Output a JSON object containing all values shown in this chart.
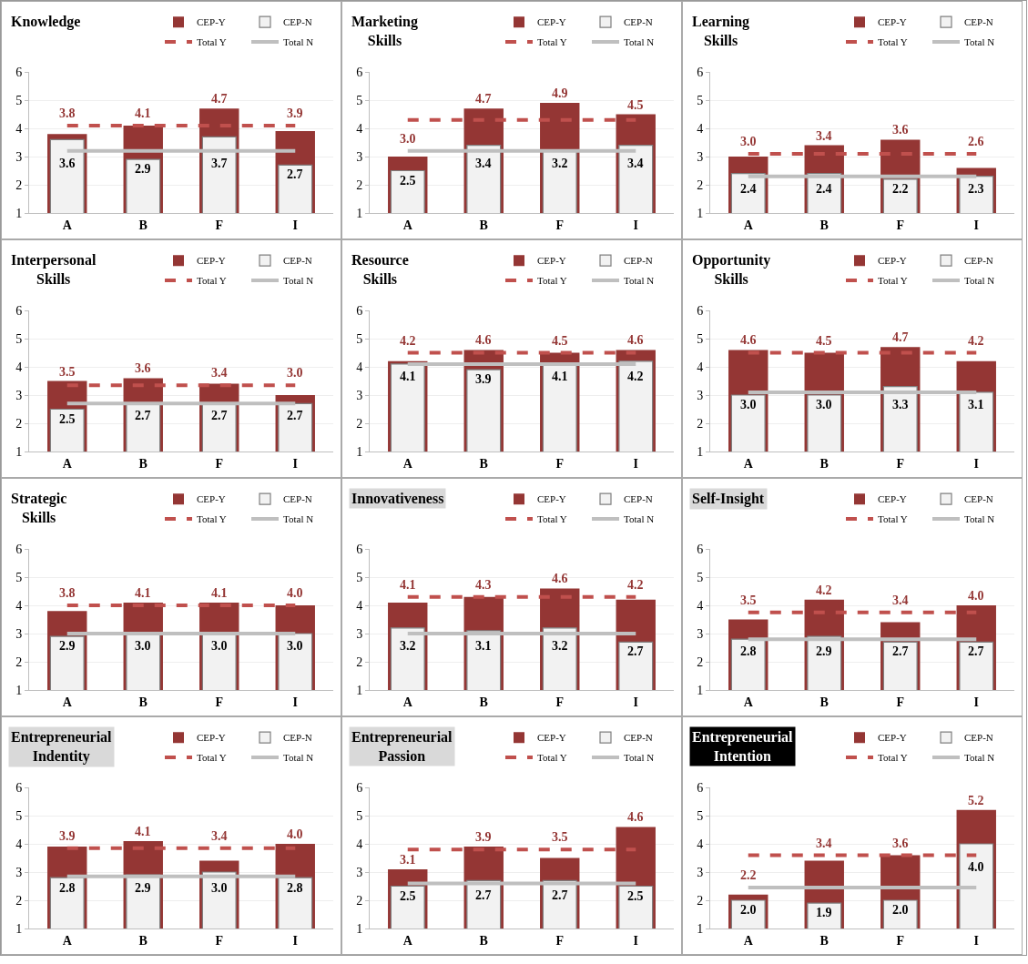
{
  "chart_data": [
    {
      "type": "bar",
      "title": "Knowledge",
      "categories": [
        "A",
        "B",
        "F",
        "I"
      ],
      "ylim": [
        1,
        6
      ],
      "yticks": [
        1,
        2,
        3,
        4,
        5,
        6
      ],
      "grid": "y",
      "legend": "top right",
      "series": [
        {
          "name": "CEP-Y",
          "color": "#943634",
          "values": [
            3.8,
            4.1,
            4.7,
            3.9
          ],
          "value_labels": [
            "3.8",
            "4.1",
            "4.7",
            "3.9"
          ]
        },
        {
          "name": "CEP-N",
          "color": "#f2f2f2",
          "values": [
            3.6,
            2.9,
            3.7,
            2.7
          ],
          "value_labels": [
            "3.6",
            "2.9",
            "3.7",
            "2.7"
          ]
        },
        {
          "name": "Total Y",
          "type": "line",
          "color": "#c0504d",
          "line_style": "dashed",
          "values": [
            4.1,
            4.1,
            4.1,
            4.1
          ]
        },
        {
          "name": "Total N",
          "type": "line",
          "color": "#bfbfbf",
          "line_style": "solid",
          "values": [
            3.2,
            3.2,
            3.2,
            3.2
          ]
        }
      ]
    },
    {
      "type": "bar",
      "title": "Marketing Skills",
      "categories": [
        "A",
        "B",
        "F",
        "I"
      ],
      "ylim": [
        1,
        6
      ],
      "yticks": [
        1,
        2,
        3,
        4,
        5,
        6
      ],
      "grid": "y",
      "legend": "top right",
      "series": [
        {
          "name": "CEP-Y",
          "color": "#943634",
          "values": [
            3.0,
            4.7,
            4.9,
            4.5
          ],
          "value_labels": [
            "3.0",
            "4.7",
            "4.9",
            "4.5"
          ]
        },
        {
          "name": "CEP-N",
          "color": "#f2f2f2",
          "values": [
            2.5,
            3.4,
            3.2,
            3.4
          ],
          "value_labels": [
            "2.5",
            "3.4",
            "3.2",
            "3.4"
          ]
        },
        {
          "name": "Total Y",
          "type": "line",
          "color": "#c0504d",
          "line_style": "dashed",
          "values": [
            4.3,
            4.3,
            4.3,
            4.3
          ]
        },
        {
          "name": "Total N",
          "type": "line",
          "color": "#bfbfbf",
          "line_style": "solid",
          "values": [
            3.2,
            3.2,
            3.2,
            3.2
          ]
        }
      ]
    },
    {
      "type": "bar",
      "title": "Learning Skills",
      "categories": [
        "A",
        "B",
        "F",
        "I"
      ],
      "ylim": [
        1,
        6
      ],
      "yticks": [
        1,
        2,
        3,
        4,
        5,
        6
      ],
      "grid": "y",
      "legend": "top right",
      "series": [
        {
          "name": "CEP-Y",
          "color": "#943634",
          "values": [
            3.0,
            3.4,
            3.6,
            2.6
          ],
          "value_labels": [
            "3.0",
            "3.4",
            "3.6",
            "2.6"
          ]
        },
        {
          "name": "CEP-N",
          "color": "#f2f2f2",
          "values": [
            2.4,
            2.4,
            2.2,
            2.3
          ],
          "value_labels": [
            "2.4",
            "2.4",
            "2.2",
            "2.3"
          ]
        },
        {
          "name": "Total Y",
          "type": "line",
          "color": "#c0504d",
          "line_style": "dashed",
          "values": [
            3.1,
            3.1,
            3.1,
            3.1
          ]
        },
        {
          "name": "Total N",
          "type": "line",
          "color": "#bfbfbf",
          "line_style": "solid",
          "values": [
            2.3,
            2.3,
            2.3,
            2.3
          ]
        }
      ]
    },
    {
      "type": "bar",
      "title": "Interpersonal Skills",
      "categories": [
        "A",
        "B",
        "F",
        "I"
      ],
      "ylim": [
        1,
        6
      ],
      "yticks": [
        1,
        2,
        3,
        4,
        5,
        6
      ],
      "grid": "y",
      "legend": "top right",
      "series": [
        {
          "name": "CEP-Y",
          "color": "#943634",
          "values": [
            3.5,
            3.6,
            3.4,
            3.0
          ],
          "value_labels": [
            "3.5",
            "3.6",
            "3.4",
            "3.0"
          ]
        },
        {
          "name": "CEP-N",
          "color": "#f2f2f2",
          "values": [
            2.5,
            2.7,
            2.7,
            2.7
          ],
          "value_labels": [
            "2.5",
            "2.7",
            "2.7",
            "2.7"
          ]
        },
        {
          "name": "Total Y",
          "type": "line",
          "color": "#c0504d",
          "line_style": "dashed",
          "values": [
            3.35,
            3.35,
            3.35,
            3.35
          ]
        },
        {
          "name": "Total N",
          "type": "line",
          "color": "#bfbfbf",
          "line_style": "solid",
          "values": [
            2.7,
            2.7,
            2.7,
            2.7
          ]
        }
      ]
    },
    {
      "type": "bar",
      "title": "Resource Skills",
      "categories": [
        "A",
        "B",
        "F",
        "I"
      ],
      "ylim": [
        1,
        6
      ],
      "yticks": [
        1,
        2,
        3,
        4,
        5,
        6
      ],
      "grid": "y",
      "legend": "top right",
      "series": [
        {
          "name": "CEP-Y",
          "color": "#943634",
          "values": [
            4.2,
            4.6,
            4.5,
            4.6
          ],
          "value_labels": [
            "4.2",
            "4.6",
            "4.5",
            "4.6"
          ]
        },
        {
          "name": "CEP-N",
          "color": "#f2f2f2",
          "values": [
            4.1,
            3.9,
            4.1,
            4.2
          ],
          "value_labels": [
            "4.1",
            "3.9",
            "4.1",
            "4.2"
          ]
        },
        {
          "name": "Total Y",
          "type": "line",
          "color": "#c0504d",
          "line_style": "dashed",
          "values": [
            4.5,
            4.5,
            4.5,
            4.5
          ]
        },
        {
          "name": "Total N",
          "type": "line",
          "color": "#bfbfbf",
          "line_style": "solid",
          "values": [
            4.1,
            4.1,
            4.1,
            4.1
          ]
        }
      ]
    },
    {
      "type": "bar",
      "title": "Opportunity Skills",
      "categories": [
        "A",
        "B",
        "F",
        "I"
      ],
      "ylim": [
        1,
        6
      ],
      "yticks": [
        1,
        2,
        3,
        4,
        5,
        6
      ],
      "grid": "y",
      "legend": "top right",
      "series": [
        {
          "name": "CEP-Y",
          "color": "#943634",
          "values": [
            4.6,
            4.5,
            4.7,
            4.2
          ],
          "value_labels": [
            "4.6",
            "4.5",
            "4.7",
            "4.2"
          ]
        },
        {
          "name": "CEP-N",
          "color": "#f2f2f2",
          "values": [
            3.0,
            3.0,
            3.3,
            3.1
          ],
          "value_labels": [
            "3.0",
            "3.0",
            "3.3",
            "3.1"
          ]
        },
        {
          "name": "Total Y",
          "type": "line",
          "color": "#c0504d",
          "line_style": "dashed",
          "values": [
            4.5,
            4.5,
            4.5,
            4.5
          ]
        },
        {
          "name": "Total N",
          "type": "line",
          "color": "#bfbfbf",
          "line_style": "solid",
          "values": [
            3.1,
            3.1,
            3.1,
            3.1
          ]
        }
      ]
    },
    {
      "type": "bar",
      "title": "Strategic Skills",
      "categories": [
        "A",
        "B",
        "F",
        "I"
      ],
      "ylim": [
        1,
        6
      ],
      "yticks": [
        1,
        2,
        3,
        4,
        5,
        6
      ],
      "grid": "y",
      "legend": "top right",
      "series": [
        {
          "name": "CEP-Y",
          "color": "#943634",
          "values": [
            3.8,
            4.1,
            4.1,
            4.0
          ],
          "value_labels": [
            "3.8",
            "4.1",
            "4.1",
            "4.0"
          ]
        },
        {
          "name": "CEP-N",
          "color": "#f2f2f2",
          "values": [
            2.9,
            3.0,
            3.0,
            3.0
          ],
          "value_labels": [
            "2.9",
            "3.0",
            "3.0",
            "3.0"
          ]
        },
        {
          "name": "Total Y",
          "type": "line",
          "color": "#c0504d",
          "line_style": "dashed",
          "values": [
            4.0,
            4.0,
            4.0,
            4.0
          ]
        },
        {
          "name": "Total N",
          "type": "line",
          "color": "#bfbfbf",
          "line_style": "solid",
          "values": [
            3.0,
            3.0,
            3.0,
            3.0
          ]
        }
      ]
    },
    {
      "type": "bar",
      "title": "Innovativeness",
      "categories": [
        "A",
        "B",
        "F",
        "I"
      ],
      "ylim": [
        1,
        6
      ],
      "yticks": [
        1,
        2,
        3,
        4,
        5,
        6
      ],
      "grid": "y",
      "legend": "top right",
      "series": [
        {
          "name": "CEP-Y",
          "color": "#943634",
          "values": [
            4.1,
            4.3,
            4.6,
            4.2
          ],
          "value_labels": [
            "4.1",
            "4.3",
            "4.6",
            "4.2"
          ]
        },
        {
          "name": "CEP-N",
          "color": "#f2f2f2",
          "values": [
            3.2,
            3.1,
            3.2,
            2.7
          ],
          "value_labels": [
            "3.2",
            "3.1",
            "3.2",
            "2.7"
          ]
        },
        {
          "name": "Total Y",
          "type": "line",
          "color": "#c0504d",
          "line_style": "dashed",
          "values": [
            4.3,
            4.3,
            4.3,
            4.3
          ]
        },
        {
          "name": "Total N",
          "type": "line",
          "color": "#bfbfbf",
          "line_style": "solid",
          "values": [
            3.0,
            3.0,
            3.0,
            3.0
          ]
        }
      ]
    },
    {
      "type": "bar",
      "title": "Self-Insight",
      "categories": [
        "A",
        "B",
        "F",
        "I"
      ],
      "ylim": [
        1,
        6
      ],
      "yticks": [
        1,
        2,
        3,
        4,
        5,
        6
      ],
      "grid": "y",
      "legend": "top right",
      "series": [
        {
          "name": "CEP-Y",
          "color": "#943634",
          "values": [
            3.5,
            4.2,
            3.4,
            4.0
          ],
          "value_labels": [
            "3.5",
            "4.2",
            "3.4",
            "4.0"
          ]
        },
        {
          "name": "CEP-N",
          "color": "#f2f2f2",
          "values": [
            2.8,
            2.9,
            2.7,
            2.7
          ],
          "value_labels": [
            "2.8",
            "2.9",
            "2.7",
            "2.7"
          ]
        },
        {
          "name": "Total Y",
          "type": "line",
          "color": "#c0504d",
          "line_style": "dashed",
          "values": [
            3.75,
            3.75,
            3.75,
            3.75
          ]
        },
        {
          "name": "Total N",
          "type": "line",
          "color": "#bfbfbf",
          "line_style": "solid",
          "values": [
            2.8,
            2.8,
            2.8,
            2.8
          ]
        }
      ]
    },
    {
      "type": "bar",
      "title": "Entrepreneurial Indentity",
      "categories": [
        "A",
        "B",
        "F",
        "I"
      ],
      "ylim": [
        1,
        6
      ],
      "yticks": [
        1,
        2,
        3,
        4,
        5,
        6
      ],
      "grid": "y",
      "legend": "top right",
      "series": [
        {
          "name": "CEP-Y",
          "color": "#943634",
          "values": [
            3.9,
            4.1,
            3.4,
            4.0
          ],
          "value_labels": [
            "3.9",
            "4.1",
            "3.4",
            "4.0"
          ]
        },
        {
          "name": "CEP-N",
          "color": "#f2f2f2",
          "values": [
            2.8,
            2.9,
            3.0,
            2.8
          ],
          "value_labels": [
            "2.8",
            "2.9",
            "3.0",
            "2.8"
          ]
        },
        {
          "name": "Total Y",
          "type": "line",
          "color": "#c0504d",
          "line_style": "dashed",
          "values": [
            3.85,
            3.85,
            3.85,
            3.85
          ]
        },
        {
          "name": "Total N",
          "type": "line",
          "color": "#bfbfbf",
          "line_style": "solid",
          "values": [
            2.85,
            2.85,
            2.85,
            2.85
          ]
        }
      ]
    },
    {
      "type": "bar",
      "title": "Entrepreneurial Passion",
      "categories": [
        "A",
        "B",
        "F",
        "I"
      ],
      "ylim": [
        1,
        6
      ],
      "yticks": [
        1,
        2,
        3,
        4,
        5,
        6
      ],
      "grid": "y",
      "legend": "top right",
      "series": [
        {
          "name": "CEP-Y",
          "color": "#943634",
          "values": [
            3.1,
            3.9,
            3.5,
            4.6
          ],
          "value_labels": [
            "3.1",
            "3.9",
            "3.5",
            "4.6"
          ]
        },
        {
          "name": "CEP-N",
          "color": "#f2f2f2",
          "values": [
            2.5,
            2.7,
            2.7,
            2.5
          ],
          "value_labels": [
            "2.5",
            "2.7",
            "2.7",
            "2.5"
          ]
        },
        {
          "name": "Total Y",
          "type": "line",
          "color": "#c0504d",
          "line_style": "dashed",
          "values": [
            3.8,
            3.8,
            3.8,
            3.8
          ]
        },
        {
          "name": "Total N",
          "type": "line",
          "color": "#bfbfbf",
          "line_style": "solid",
          "values": [
            2.6,
            2.6,
            2.6,
            2.6
          ]
        }
      ]
    },
    {
      "type": "bar",
      "title": "Entrepreneurial Intention",
      "categories": [
        "A",
        "B",
        "F",
        "I"
      ],
      "ylim": [
        1,
        6
      ],
      "yticks": [
        1,
        2,
        3,
        4,
        5,
        6
      ],
      "grid": "y",
      "legend": "top right",
      "series": [
        {
          "name": "CEP-Y",
          "color": "#943634",
          "values": [
            2.2,
            3.4,
            3.6,
            5.2
          ],
          "value_labels": [
            "2.2",
            "3.4",
            "3.6",
            "5.2"
          ]
        },
        {
          "name": "CEP-N",
          "color": "#f2f2f2",
          "values": [
            2.0,
            1.9,
            2.0,
            4.0
          ],
          "value_labels": [
            "2.0",
            "1.9",
            "2.0",
            "4.0"
          ]
        },
        {
          "name": "Total Y",
          "type": "line",
          "color": "#c0504d",
          "line_style": "dashed",
          "values": [
            3.6,
            3.6,
            3.6,
            3.6
          ]
        },
        {
          "name": "Total N",
          "type": "line",
          "color": "#bfbfbf",
          "line_style": "solid",
          "values": [
            2.45,
            2.45,
            2.45,
            2.45
          ]
        }
      ]
    }
  ]
}
